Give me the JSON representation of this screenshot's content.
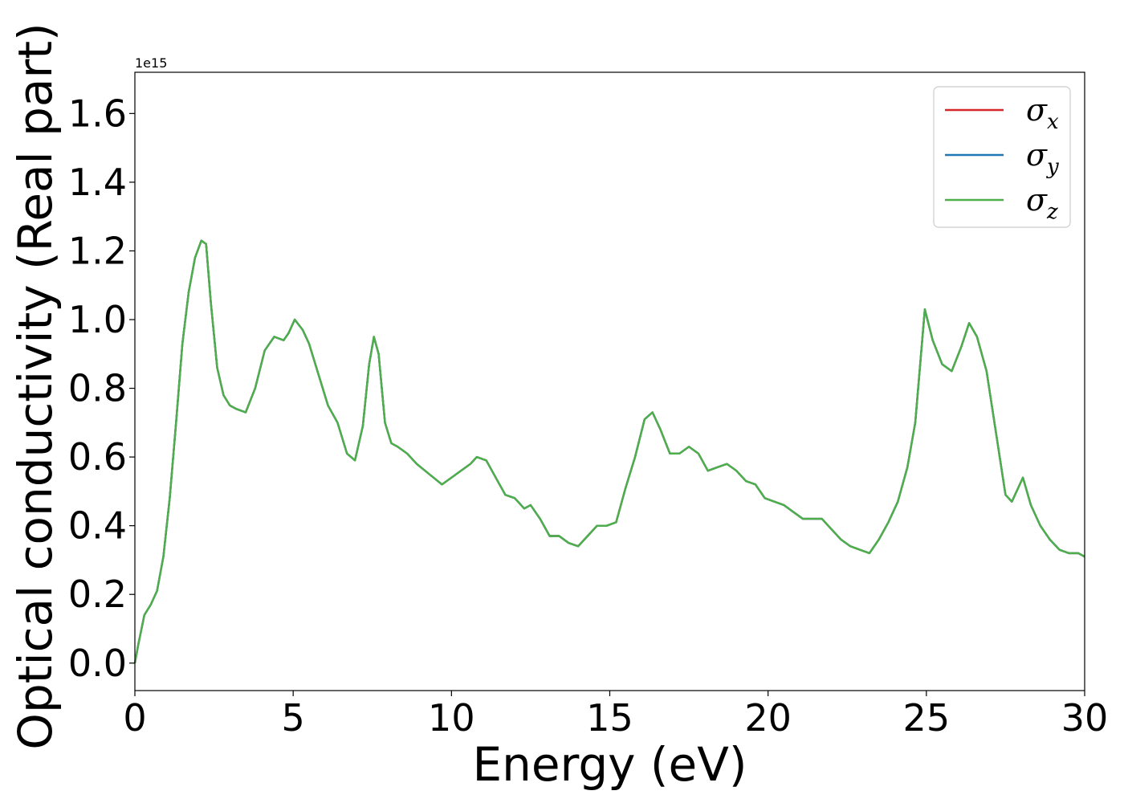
{
  "chart_data": {
    "type": "line",
    "title": "",
    "xlabel": "Energy (eV)",
    "ylabel": "Optical conductivity (Real part)",
    "y_offset_text": "1e15",
    "xlim": [
      0,
      30
    ],
    "ylim": [
      -0.08,
      1.72
    ],
    "x_ticks": [
      0,
      5,
      10,
      15,
      20,
      25,
      30
    ],
    "x_tick_labels": [
      "0",
      "5",
      "10",
      "15",
      "20",
      "25",
      "30"
    ],
    "y_ticks": [
      0.0,
      0.2,
      0.4,
      0.6,
      0.8,
      1.0,
      1.2,
      1.4,
      1.6
    ],
    "y_tick_labels": [
      "0.0",
      "0.2",
      "0.4",
      "0.6",
      "0.8",
      "1.0",
      "1.2",
      "1.4",
      "1.6"
    ],
    "grid": false,
    "legend_position": "top-right",
    "x": [
      0,
      0.1,
      0.3,
      0.5,
      0.7,
      0.9,
      1.1,
      1.3,
      1.5,
      1.7,
      1.9,
      2.1,
      2.25,
      2.4,
      2.6,
      2.8,
      3.0,
      3.2,
      3.5,
      3.8,
      4.1,
      4.4,
      4.7,
      4.85,
      5.05,
      5.3,
      5.5,
      5.8,
      6.1,
      6.4,
      6.7,
      6.95,
      7.2,
      7.4,
      7.55,
      7.7,
      7.9,
      8.1,
      8.3,
      8.6,
      8.9,
      9.3,
      9.7,
      10.0,
      10.3,
      10.6,
      10.8,
      11.1,
      11.4,
      11.7,
      12.0,
      12.3,
      12.5,
      12.8,
      13.1,
      13.4,
      13.7,
      14.0,
      14.3,
      14.6,
      14.9,
      15.2,
      15.5,
      15.8,
      16.1,
      16.35,
      16.6,
      16.9,
      17.2,
      17.5,
      17.8,
      18.1,
      18.4,
      18.7,
      19.0,
      19.3,
      19.6,
      19.9,
      20.2,
      20.5,
      20.8,
      21.1,
      21.4,
      21.7,
      22.0,
      22.3,
      22.6,
      22.9,
      23.2,
      23.5,
      23.8,
      24.1,
      24.4,
      24.65,
      24.95,
      25.2,
      25.5,
      25.8,
      26.1,
      26.35,
      26.6,
      26.9,
      27.2,
      27.5,
      27.7,
      27.9,
      28.05,
      28.3,
      28.6,
      28.9,
      29.2,
      29.5,
      29.8,
      30.0
    ],
    "series": [
      {
        "name": "σx",
        "color": "#d62728",
        "values": [
          0.0,
          0.05,
          0.14,
          0.17,
          0.21,
          0.31,
          0.48,
          0.7,
          0.93,
          1.08,
          1.18,
          1.23,
          1.22,
          1.05,
          0.86,
          0.78,
          0.75,
          0.74,
          0.73,
          0.8,
          0.91,
          0.95,
          0.94,
          0.96,
          1.0,
          0.97,
          0.93,
          0.84,
          0.75,
          0.7,
          0.61,
          0.59,
          0.69,
          0.87,
          0.95,
          0.9,
          0.7,
          0.64,
          0.63,
          0.61,
          0.58,
          0.55,
          0.52,
          0.54,
          0.56,
          0.58,
          0.6,
          0.59,
          0.54,
          0.49,
          0.48,
          0.45,
          0.46,
          0.42,
          0.37,
          0.37,
          0.35,
          0.34,
          0.37,
          0.4,
          0.4,
          0.41,
          0.51,
          0.6,
          0.71,
          0.73,
          0.68,
          0.61,
          0.61,
          0.63,
          0.61,
          0.56,
          0.57,
          0.58,
          0.56,
          0.53,
          0.52,
          0.48,
          0.47,
          0.46,
          0.44,
          0.42,
          0.42,
          0.42,
          0.39,
          0.36,
          0.34,
          0.33,
          0.32,
          0.36,
          0.41,
          0.47,
          0.57,
          0.7,
          1.03,
          0.94,
          0.87,
          0.85,
          0.92,
          0.99,
          0.95,
          0.85,
          0.67,
          0.49,
          0.47,
          0.51,
          0.54,
          0.46,
          0.4,
          0.36,
          0.33,
          0.32,
          0.32,
          0.31
        ]
      },
      {
        "name": "σy",
        "color": "#1f77b4",
        "values": [
          0.0,
          0.05,
          0.14,
          0.17,
          0.21,
          0.31,
          0.48,
          0.7,
          0.93,
          1.08,
          1.18,
          1.23,
          1.22,
          1.05,
          0.86,
          0.78,
          0.75,
          0.74,
          0.73,
          0.8,
          0.91,
          0.95,
          0.94,
          0.96,
          1.0,
          0.97,
          0.93,
          0.84,
          0.75,
          0.7,
          0.61,
          0.59,
          0.69,
          0.87,
          0.95,
          0.9,
          0.7,
          0.64,
          0.63,
          0.61,
          0.58,
          0.55,
          0.52,
          0.54,
          0.56,
          0.58,
          0.6,
          0.59,
          0.54,
          0.49,
          0.48,
          0.45,
          0.46,
          0.42,
          0.37,
          0.37,
          0.35,
          0.34,
          0.37,
          0.4,
          0.4,
          0.41,
          0.51,
          0.6,
          0.71,
          0.73,
          0.68,
          0.61,
          0.61,
          0.63,
          0.61,
          0.56,
          0.57,
          0.58,
          0.56,
          0.53,
          0.52,
          0.48,
          0.47,
          0.46,
          0.44,
          0.42,
          0.42,
          0.42,
          0.39,
          0.36,
          0.34,
          0.33,
          0.32,
          0.36,
          0.41,
          0.47,
          0.57,
          0.7,
          1.03,
          0.94,
          0.87,
          0.85,
          0.92,
          0.99,
          0.95,
          0.85,
          0.67,
          0.49,
          0.47,
          0.51,
          0.54,
          0.46,
          0.4,
          0.36,
          0.33,
          0.32,
          0.32,
          0.31
        ]
      },
      {
        "name": "σz",
        "color": "#4daf4a",
        "values": [
          0.0,
          0.05,
          0.14,
          0.17,
          0.21,
          0.31,
          0.48,
          0.7,
          0.93,
          1.08,
          1.18,
          1.23,
          1.22,
          1.05,
          0.86,
          0.78,
          0.75,
          0.74,
          0.73,
          0.8,
          0.91,
          0.95,
          0.94,
          0.96,
          1.0,
          0.97,
          0.93,
          0.84,
          0.75,
          0.7,
          0.61,
          0.59,
          0.69,
          0.87,
          0.95,
          0.9,
          0.7,
          0.64,
          0.63,
          0.61,
          0.58,
          0.55,
          0.52,
          0.54,
          0.56,
          0.58,
          0.6,
          0.59,
          0.54,
          0.49,
          0.48,
          0.45,
          0.46,
          0.42,
          0.37,
          0.37,
          0.35,
          0.34,
          0.37,
          0.4,
          0.4,
          0.41,
          0.51,
          0.6,
          0.71,
          0.73,
          0.68,
          0.61,
          0.61,
          0.63,
          0.61,
          0.56,
          0.57,
          0.58,
          0.56,
          0.53,
          0.52,
          0.48,
          0.47,
          0.46,
          0.44,
          0.42,
          0.42,
          0.42,
          0.39,
          0.36,
          0.34,
          0.33,
          0.32,
          0.36,
          0.41,
          0.47,
          0.57,
          0.7,
          1.03,
          0.94,
          0.87,
          0.85,
          0.92,
          0.99,
          0.95,
          0.85,
          0.67,
          0.49,
          0.47,
          0.51,
          0.54,
          0.46,
          0.4,
          0.36,
          0.33,
          0.32,
          0.32,
          0.31
        ]
      }
    ],
    "legend": [
      {
        "symbol": "σ",
        "sub": "x"
      },
      {
        "symbol": "σ",
        "sub": "y"
      },
      {
        "symbol": "σ",
        "sub": "z"
      }
    ]
  }
}
